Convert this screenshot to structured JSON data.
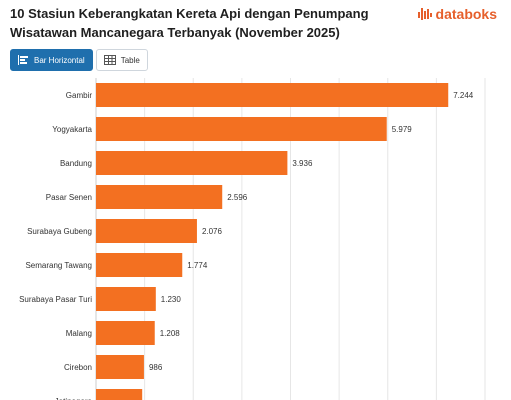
{
  "header": {
    "title": "10 Stasiun Keberangkatan Kereta Api dengan Penumpang Wisatawan Mancanegara Terbanyak (November 2025)",
    "brand": "databoks",
    "brand_color": "#e65f2b"
  },
  "toolbar": {
    "bar_label": "Bar Horizontal",
    "table_label": "Table",
    "active_color": "#1f6fad"
  },
  "chart_data": {
    "type": "bar",
    "orientation": "horizontal",
    "title": "10 Stasiun Keberangkatan Kereta Api dengan Penumpang Wisatawan Mancanegara Terbanyak (November 2025)",
    "categories": [
      "Gambir",
      "Yogyakarta",
      "Bandung",
      "Pasar Senen",
      "Surabaya Gubeng",
      "Semarang Tawang",
      "Surabaya Pasar Turi",
      "Malang",
      "Cirebon",
      "Jatinegara"
    ],
    "values": [
      7244,
      5979,
      3936,
      2596,
      2076,
      1774,
      1230,
      1208,
      986,
      950
    ],
    "value_labels": [
      "7.244",
      "5.979",
      "3.936",
      "2.596",
      "2.076",
      "1.774",
      "1.230",
      "1.208",
      "986",
      ""
    ],
    "xlim": [
      0,
      8000
    ],
    "grid": true,
    "bar_color": "#f37021"
  }
}
